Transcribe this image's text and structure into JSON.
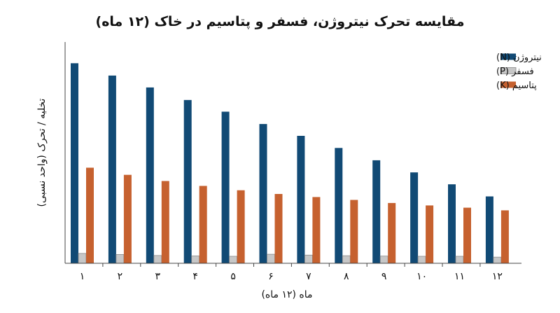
{
  "chart_data": {
    "type": "bar",
    "title": "مقایسه تحرک نیتروژن، فسفر و پتاسیم در خاک (۱۲ ماه)",
    "xlabel": "ماه (۱۲ ماه)",
    "ylabel": "تخلیه / تحرک (واحد نسبی)",
    "categories": [
      "۱",
      "۲",
      "۳",
      "۴",
      "۵",
      "۶",
      "۷",
      "۸",
      "۹",
      "۱۰",
      "۱۱",
      "۱۲"
    ],
    "ylim": [
      0,
      100
    ],
    "grid": false,
    "legend_position": "top-right",
    "series": [
      {
        "name": "نیتروژن (N)",
        "color": "#114a75",
        "values": [
          97.5,
          91.5,
          85.7,
          79.6,
          73.9,
          67.9,
          62.1,
          56.2,
          50.2,
          44.3,
          38.5,
          32.6
        ]
      },
      {
        "name": "فسفر (P)",
        "color": "#c7c7c7",
        "values": [
          4.8,
          4.3,
          3.8,
          3.6,
          3.4,
          4.4,
          4.0,
          3.7,
          3.5,
          3.4,
          3.4,
          3.0
        ]
      },
      {
        "name": "پتاسیم (K)",
        "color": "#c6612f",
        "values": [
          46.6,
          43.1,
          40.1,
          37.7,
          35.6,
          33.8,
          32.3,
          30.9,
          29.4,
          28.2,
          27.1,
          25.8
        ]
      }
    ]
  }
}
